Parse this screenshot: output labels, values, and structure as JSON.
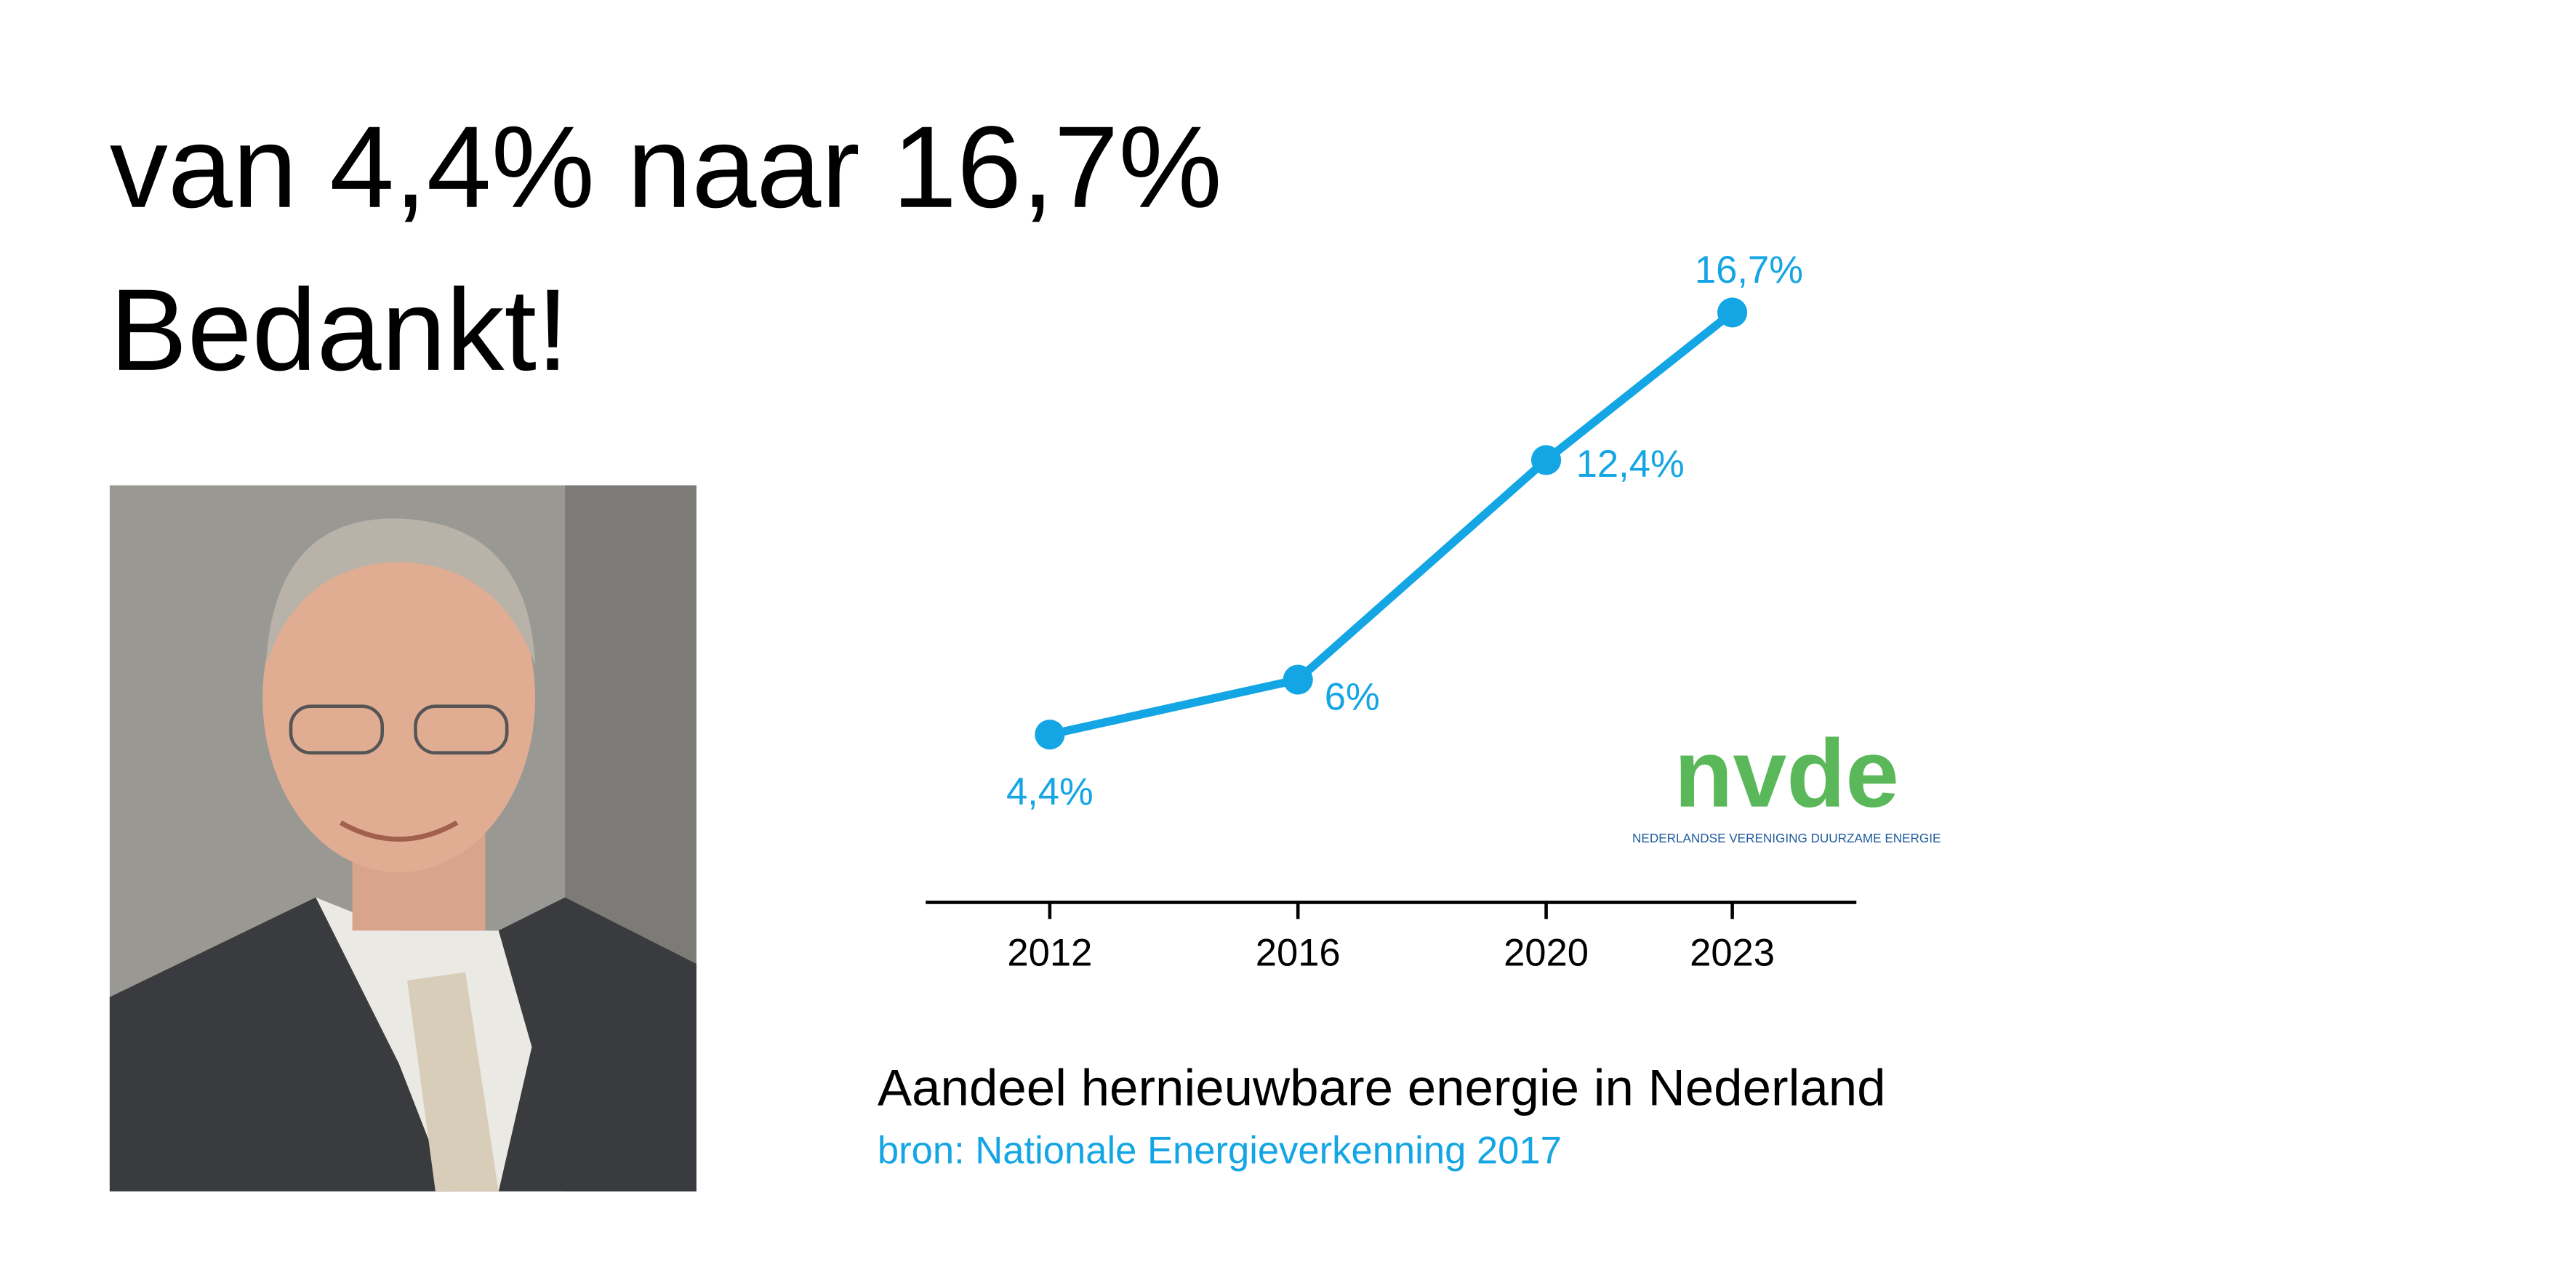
{
  "heading": {
    "line1": "van 4,4% naar 16,7%",
    "line2": "Bedankt!"
  },
  "logo": {
    "mark": "nvde",
    "name": "NEDERLANDSE VERENIGING DUURZAME ENERGIE"
  },
  "chart_data": {
    "type": "line",
    "title": "Aandeel hernieuwbare energie in Nederland",
    "subtitle": "bron: Nationale Energieverkenning 2017",
    "x": [
      2012,
      2016,
      2020,
      2023
    ],
    "values": [
      4.4,
      6,
      12.4,
      16.7
    ],
    "value_labels": [
      "4,4%",
      "6%",
      "12,4%",
      "16,7%"
    ],
    "color": "#14a6e4",
    "xlim": [
      2010,
      2025
    ],
    "xticks": [
      2012,
      2016,
      2020,
      2023
    ]
  }
}
